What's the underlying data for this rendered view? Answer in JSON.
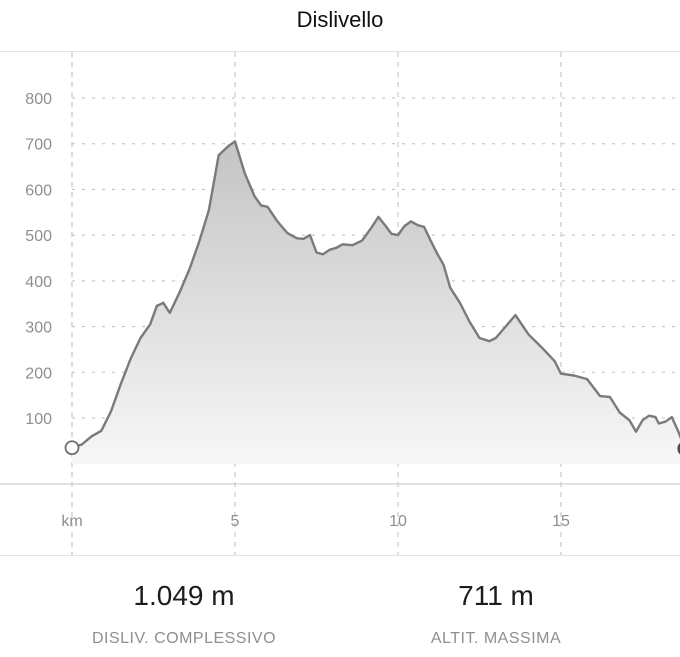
{
  "header": {
    "title": "Dislivello"
  },
  "chart_data": {
    "type": "area",
    "xlabel": "km",
    "ylabel": "",
    "xlim": [
      0,
      18.2
    ],
    "ylim": [
      -50,
      860
    ],
    "x_ticks": [
      5,
      10,
      15
    ],
    "y_ticks": [
      100,
      200,
      300,
      400,
      500,
      600,
      700,
      800
    ],
    "grid": true,
    "line_color": "#7a7a7a",
    "fill_top_color": "#c4c4c4",
    "fill_bottom_color": "#f7f7f7",
    "start_marker": "hollow-circle",
    "end_marker": "filled-circle",
    "points": [
      [
        0,
        35
      ],
      [
        0.3,
        42
      ],
      [
        0.6,
        60
      ],
      [
        0.9,
        72
      ],
      [
        1.2,
        115
      ],
      [
        1.5,
        175
      ],
      [
        1.8,
        230
      ],
      [
        2.1,
        275
      ],
      [
        2.4,
        305
      ],
      [
        2.6,
        345
      ],
      [
        2.8,
        352
      ],
      [
        3.0,
        330
      ],
      [
        3.3,
        375
      ],
      [
        3.6,
        425
      ],
      [
        3.9,
        485
      ],
      [
        4.2,
        555
      ],
      [
        4.5,
        675
      ],
      [
        4.8,
        695
      ],
      [
        5.0,
        705
      ],
      [
        5.3,
        635
      ],
      [
        5.6,
        585
      ],
      [
        5.8,
        565
      ],
      [
        6.0,
        562
      ],
      [
        6.3,
        530
      ],
      [
        6.6,
        505
      ],
      [
        6.9,
        493
      ],
      [
        7.1,
        492
      ],
      [
        7.3,
        500
      ],
      [
        7.5,
        462
      ],
      [
        7.7,
        458
      ],
      [
        7.9,
        468
      ],
      [
        8.1,
        472
      ],
      [
        8.3,
        480
      ],
      [
        8.6,
        478
      ],
      [
        8.9,
        488
      ],
      [
        9.2,
        518
      ],
      [
        9.4,
        540
      ],
      [
        9.6,
        522
      ],
      [
        9.8,
        503
      ],
      [
        10.0,
        500
      ],
      [
        10.2,
        520
      ],
      [
        10.4,
        530
      ],
      [
        10.6,
        522
      ],
      [
        10.8,
        518
      ],
      [
        11.0,
        488
      ],
      [
        11.2,
        460
      ],
      [
        11.4,
        435
      ],
      [
        11.6,
        385
      ],
      [
        11.9,
        352
      ],
      [
        12.2,
        310
      ],
      [
        12.5,
        275
      ],
      [
        12.8,
        268
      ],
      [
        13.0,
        275
      ],
      [
        13.3,
        300
      ],
      [
        13.6,
        325
      ],
      [
        14.0,
        283
      ],
      [
        14.4,
        255
      ],
      [
        14.8,
        225
      ],
      [
        15.0,
        197
      ],
      [
        15.4,
        193
      ],
      [
        15.8,
        185
      ],
      [
        16.2,
        148
      ],
      [
        16.5,
        146
      ],
      [
        16.8,
        112
      ],
      [
        17.1,
        95
      ],
      [
        17.3,
        70
      ],
      [
        17.5,
        95
      ],
      [
        17.7,
        105
      ],
      [
        17.9,
        102
      ],
      [
        18.0,
        88
      ],
      [
        18.2,
        92
      ],
      [
        18.4,
        102
      ],
      [
        18.6,
        70
      ],
      [
        18.8,
        33
      ]
    ]
  },
  "stats": [
    {
      "value": "1.049 m",
      "label": "DISLIV. COMPLESSIVO"
    },
    {
      "value": "711 m",
      "label": "ALTIT. MASSIMA"
    }
  ]
}
